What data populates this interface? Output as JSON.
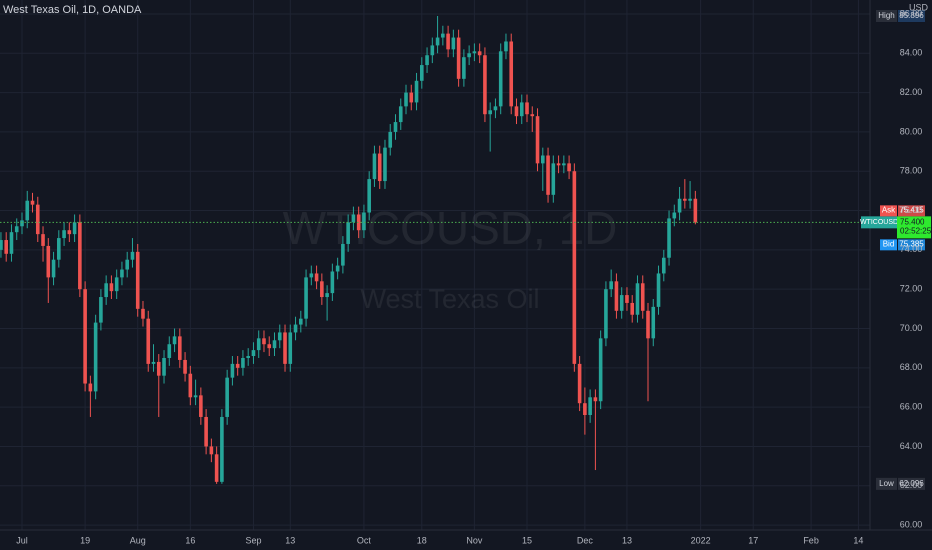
{
  "header": {
    "title": "West Texas Oil, 1D, OANDA",
    "currency": "USD"
  },
  "watermark": {
    "symbol": "WTICOUSD, 1D",
    "name": "West Texas Oil"
  },
  "chart_data": {
    "type": "candlestick",
    "up_color": "#26a69a",
    "down_color": "#ef5350",
    "grid": true,
    "xlim": [
      -4.18,
      161.2
    ],
    "ylim": [
      59.75,
      86.71
    ],
    "xticks": [
      {
        "value": 0,
        "label": "Jul"
      },
      {
        "value": 12,
        "label": "19"
      },
      {
        "value": 22,
        "label": "Aug"
      },
      {
        "value": 32,
        "label": "16"
      },
      {
        "value": 44,
        "label": "Sep"
      },
      {
        "value": 51,
        "label": "13"
      },
      {
        "value": 65,
        "label": "Oct"
      },
      {
        "value": 76,
        "label": "18"
      },
      {
        "value": 86,
        "label": "Nov"
      },
      {
        "value": 96,
        "label": "15"
      },
      {
        "value": 107,
        "label": "Dec"
      },
      {
        "value": 115,
        "label": "13"
      },
      {
        "value": 129,
        "label": "2022"
      },
      {
        "value": 139,
        "label": "17"
      },
      {
        "value": 150,
        "label": "Feb"
      },
      {
        "value": 159,
        "label": "14"
      }
    ],
    "yticks": [
      {
        "value": 60,
        "label": "60.00"
      },
      {
        "value": 62,
        "label": "62.00"
      },
      {
        "value": 64,
        "label": "64.00"
      },
      {
        "value": 66,
        "label": "66.00"
      },
      {
        "value": 68,
        "label": "68.00"
      },
      {
        "value": 70,
        "label": "70.00"
      },
      {
        "value": 72,
        "label": "72.00"
      },
      {
        "value": 74,
        "label": "74.00"
      },
      {
        "value": 76,
        "label": "76.00"
      },
      {
        "value": 78,
        "label": "78.00"
      },
      {
        "value": 80,
        "label": "80.00"
      },
      {
        "value": 82,
        "label": "82.00"
      },
      {
        "value": 84,
        "label": "84.00"
      },
      {
        "value": 86,
        "label": "86.00"
      }
    ],
    "x": [
      -4,
      -3,
      -2,
      -1,
      0,
      1,
      2,
      3,
      4,
      5,
      6,
      7,
      8,
      9,
      10,
      11,
      12,
      13,
      14,
      15,
      16,
      17,
      18,
      19,
      20,
      21,
      22,
      23,
      24,
      25,
      26,
      27,
      28,
      29,
      30,
      31,
      32,
      33,
      34,
      35,
      36,
      37,
      38,
      39,
      40,
      41,
      42,
      43,
      44,
      45,
      46,
      47,
      48,
      49,
      50,
      51,
      52,
      53,
      54,
      55,
      56,
      57,
      58,
      59,
      60,
      61,
      62,
      63,
      64,
      65,
      66,
      67,
      68,
      69,
      70,
      71,
      72,
      73,
      74,
      75,
      76,
      77,
      78,
      79,
      80,
      81,
      82,
      83,
      84,
      85,
      86,
      87,
      88,
      89,
      90,
      91,
      92,
      93,
      94,
      95,
      96,
      97,
      98,
      99,
      100,
      101,
      102,
      103,
      104,
      105,
      106,
      107,
      108,
      109,
      110,
      111,
      112,
      113,
      114,
      115,
      116,
      117,
      118,
      119,
      120,
      121,
      122,
      123,
      124,
      125,
      126,
      127,
      128
    ],
    "candles": [
      [
        74.0,
        74.9,
        73.6,
        74.5
      ],
      [
        74.5,
        74.9,
        73.4,
        73.8
      ],
      [
        73.8,
        75.3,
        73.4,
        74.9
      ],
      [
        74.9,
        75.6,
        74.5,
        75.2
      ],
      [
        75.2,
        75.9,
        74.8,
        75.5
      ],
      [
        75.5,
        77.0,
        75.1,
        76.5
      ],
      [
        76.5,
        76.9,
        75.9,
        76.3
      ],
      [
        76.3,
        76.7,
        74.4,
        74.8
      ],
      [
        74.8,
        75.2,
        73.4,
        74.2
      ],
      [
        74.2,
        74.6,
        71.3,
        72.6
      ],
      [
        72.6,
        73.9,
        72.2,
        73.5
      ],
      [
        73.5,
        75.0,
        73.1,
        74.6
      ],
      [
        74.6,
        75.4,
        74.2,
        75.0
      ],
      [
        75.0,
        75.4,
        74.4,
        74.8
      ],
      [
        74.8,
        75.8,
        74.4,
        75.4
      ],
      [
        75.4,
        75.8,
        71.6,
        72.0
      ],
      [
        72.0,
        72.4,
        66.8,
        67.2
      ],
      [
        67.2,
        67.6,
        65.5,
        66.8
      ],
      [
        66.8,
        70.7,
        66.4,
        70.3
      ],
      [
        70.3,
        72.0,
        69.9,
        71.6
      ],
      [
        71.6,
        72.7,
        71.2,
        72.3
      ],
      [
        72.3,
        72.7,
        71.5,
        71.9
      ],
      [
        71.9,
        73.0,
        71.5,
        72.6
      ],
      [
        72.6,
        73.4,
        72.2,
        73.0
      ],
      [
        73.0,
        73.9,
        72.6,
        73.5
      ],
      [
        73.5,
        74.6,
        73.1,
        73.9
      ],
      [
        73.9,
        74.3,
        70.6,
        71.0
      ],
      [
        71.0,
        71.4,
        70.1,
        70.5
      ],
      [
        70.5,
        70.9,
        67.8,
        68.2
      ],
      [
        68.2,
        69.2,
        67.8,
        68.3
      ],
      [
        68.3,
        68.7,
        65.5,
        67.6
      ],
      [
        67.6,
        68.9,
        67.2,
        68.5
      ],
      [
        68.5,
        69.6,
        68.1,
        69.2
      ],
      [
        69.2,
        70.0,
        68.8,
        69.6
      ],
      [
        69.6,
        70.0,
        68.0,
        68.4
      ],
      [
        68.4,
        68.8,
        67.3,
        67.7
      ],
      [
        67.7,
        68.1,
        66.1,
        66.5
      ],
      [
        66.5,
        67.4,
        66.1,
        66.6
      ],
      [
        66.6,
        67.0,
        65.1,
        65.5
      ],
      [
        65.5,
        65.9,
        63.6,
        64.0
      ],
      [
        64.0,
        64.4,
        63.2,
        63.6
      ],
      [
        63.6,
        64.0,
        62.096,
        62.2
      ],
      [
        62.2,
        65.9,
        62.1,
        65.5
      ],
      [
        65.5,
        67.9,
        65.1,
        67.5
      ],
      [
        67.5,
        68.6,
        67.1,
        68.2
      ],
      [
        68.2,
        68.6,
        67.6,
        68.0
      ],
      [
        68.0,
        68.9,
        67.6,
        68.5
      ],
      [
        68.5,
        69.0,
        68.1,
        68.6
      ],
      [
        68.6,
        69.3,
        68.2,
        68.9
      ],
      [
        68.9,
        69.9,
        68.5,
        69.5
      ],
      [
        69.5,
        69.9,
        68.8,
        69.2
      ],
      [
        69.2,
        69.6,
        68.6,
        69.0
      ],
      [
        69.0,
        69.8,
        68.6,
        69.4
      ],
      [
        69.4,
        70.2,
        69.0,
        69.8
      ],
      [
        69.8,
        70.2,
        67.8,
        68.2
      ],
      [
        68.2,
        70.2,
        67.8,
        69.8
      ],
      [
        69.8,
        70.6,
        69.4,
        70.2
      ],
      [
        70.2,
        70.9,
        69.8,
        70.5
      ],
      [
        70.5,
        73.0,
        70.1,
        72.6
      ],
      [
        72.6,
        73.2,
        72.2,
        72.8
      ],
      [
        72.8,
        73.2,
        72.0,
        72.4
      ],
      [
        72.4,
        72.8,
        71.2,
        71.6
      ],
      [
        71.6,
        72.2,
        70.4,
        71.8
      ],
      [
        71.8,
        73.3,
        71.4,
        72.9
      ],
      [
        72.9,
        73.6,
        72.5,
        73.2
      ],
      [
        73.2,
        74.7,
        72.8,
        74.3
      ],
      [
        74.3,
        75.8,
        73.9,
        75.4
      ],
      [
        75.4,
        76.2,
        75.0,
        75.8
      ],
      [
        75.8,
        76.2,
        74.6,
        75.0
      ],
      [
        75.0,
        76.3,
        74.6,
        75.9
      ],
      [
        75.9,
        78.0,
        75.5,
        77.6
      ],
      [
        77.6,
        79.3,
        77.2,
        78.9
      ],
      [
        78.9,
        79.3,
        77.1,
        77.5
      ],
      [
        77.5,
        79.6,
        77.1,
        79.2
      ],
      [
        79.2,
        80.4,
        78.8,
        80.0
      ],
      [
        80.0,
        80.9,
        79.6,
        80.5
      ],
      [
        80.5,
        81.7,
        80.1,
        81.3
      ],
      [
        81.3,
        82.4,
        80.9,
        82.0
      ],
      [
        82.0,
        82.4,
        81.1,
        81.5
      ],
      [
        81.5,
        83.0,
        81.1,
        82.6
      ],
      [
        82.6,
        83.8,
        82.2,
        83.4
      ],
      [
        83.4,
        84.3,
        83.0,
        83.9
      ],
      [
        83.9,
        84.8,
        83.5,
        84.4
      ],
      [
        84.4,
        85.896,
        84.0,
        84.8
      ],
      [
        84.8,
        85.4,
        84.4,
        85.0
      ],
      [
        85.0,
        85.4,
        83.8,
        84.2
      ],
      [
        84.2,
        85.2,
        83.8,
        84.8
      ],
      [
        84.8,
        85.2,
        82.3,
        82.7
      ],
      [
        82.7,
        84.2,
        82.3,
        83.8
      ],
      [
        83.8,
        84.4,
        83.4,
        84.0
      ],
      [
        84.0,
        84.5,
        83.6,
        84.1
      ],
      [
        84.1,
        84.5,
        83.5,
        83.9
      ],
      [
        83.9,
        84.3,
        80.5,
        80.9
      ],
      [
        80.9,
        81.5,
        79.0,
        81.1
      ],
      [
        81.1,
        81.7,
        80.7,
        81.3
      ],
      [
        81.3,
        84.5,
        80.9,
        84.1
      ],
      [
        84.1,
        85.0,
        83.7,
        84.6
      ],
      [
        84.6,
        85.0,
        80.9,
        81.3
      ],
      [
        81.3,
        81.7,
        80.4,
        80.8
      ],
      [
        80.8,
        81.9,
        80.4,
        81.5
      ],
      [
        81.5,
        81.9,
        80.5,
        80.9
      ],
      [
        80.9,
        81.3,
        80.0,
        80.8
      ],
      [
        80.8,
        81.2,
        78.0,
        78.4
      ],
      [
        78.4,
        79.2,
        77.0,
        78.8
      ],
      [
        78.8,
        79.2,
        76.4,
        76.8
      ],
      [
        76.8,
        78.8,
        76.4,
        78.4
      ],
      [
        78.4,
        78.8,
        77.9,
        78.3
      ],
      [
        78.3,
        78.8,
        77.9,
        78.4
      ],
      [
        78.4,
        78.8,
        77.6,
        78.0
      ],
      [
        78.0,
        78.4,
        67.8,
        68.2
      ],
      [
        68.2,
        68.6,
        65.8,
        66.2
      ],
      [
        66.2,
        67.0,
        64.6,
        65.6
      ],
      [
        65.6,
        66.9,
        65.2,
        66.5
      ],
      [
        66.5,
        66.9,
        62.8,
        66.3
      ],
      [
        66.3,
        69.9,
        65.9,
        69.5
      ],
      [
        69.5,
        72.4,
        69.1,
        72.0
      ],
      [
        72.0,
        73.0,
        71.6,
        72.4
      ],
      [
        72.4,
        72.8,
        70.5,
        70.9
      ],
      [
        70.9,
        72.1,
        70.5,
        71.7
      ],
      [
        71.7,
        72.1,
        70.9,
        71.3
      ],
      [
        71.3,
        71.7,
        70.3,
        70.7
      ],
      [
        70.7,
        72.7,
        70.3,
        72.3
      ],
      [
        72.3,
        72.7,
        70.5,
        70.9
      ],
      [
        70.9,
        71.3,
        66.3,
        69.5
      ],
      [
        69.5,
        71.5,
        69.1,
        71.1
      ],
      [
        71.1,
        73.2,
        70.7,
        72.8
      ],
      [
        72.8,
        74.0,
        72.4,
        73.6
      ],
      [
        73.6,
        76.0,
        73.2,
        75.6
      ],
      [
        75.6,
        76.3,
        75.2,
        75.9
      ],
      [
        75.9,
        77.2,
        75.5,
        76.6
      ],
      [
        76.6,
        77.6,
        76.1,
        76.5
      ],
      [
        76.5,
        77.5,
        76.1,
        76.6
      ],
      [
        76.6,
        77.0,
        75.3,
        75.4
      ]
    ],
    "high": {
      "label": "High",
      "value": 85.896
    },
    "low": {
      "label": "Low",
      "value": 62.096
    },
    "ask": {
      "label": "Ask",
      "value": 75.415
    },
    "bid": {
      "label": "Bid",
      "value": 75.385
    },
    "current": {
      "symbol": "WTICOUSD",
      "price": {
        "value": 75.4,
        "label": "75.400"
      },
      "countdown": "02:52:25"
    }
  }
}
